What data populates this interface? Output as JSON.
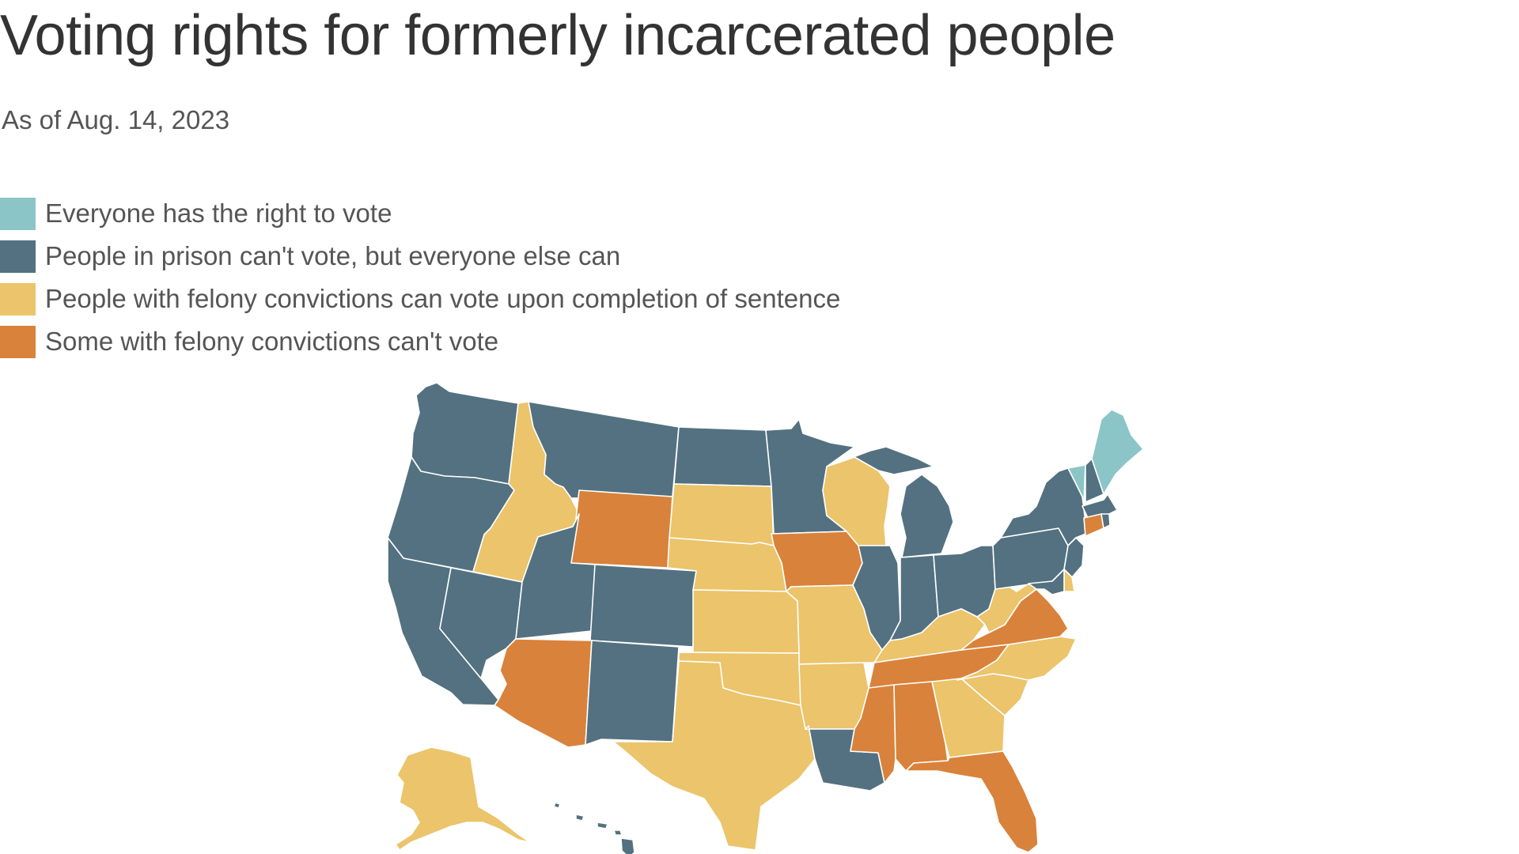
{
  "header": {
    "title": "Voting rights for formerly incarcerated people",
    "subtitle": "As of Aug. 14, 2023"
  },
  "legend": [
    {
      "key": "everyone",
      "label": "Everyone has the right to vote",
      "color": "#8cc5c7"
    },
    {
      "key": "prison",
      "label": "People in prison can't vote, but everyone else can",
      "color": "#537180"
    },
    {
      "key": "sentence",
      "label": "People with felony convictions can vote upon completion of sentence",
      "color": "#ebc46b"
    },
    {
      "key": "some",
      "label": "Some with felony convictions can't vote",
      "color": "#d9823b"
    }
  ],
  "states": {
    "WA": "prison",
    "OR": "prison",
    "CA": "prison",
    "NV": "prison",
    "ID": "sentence",
    "MT": "prison",
    "WY": "some",
    "UT": "prison",
    "CO": "prison",
    "AZ": "some",
    "NM": "prison",
    "ND": "prison",
    "SD": "sentence",
    "NE": "sentence",
    "KS": "sentence",
    "OK": "sentence",
    "TX": "sentence",
    "MN": "prison",
    "IA": "some",
    "MO": "sentence",
    "AR": "sentence",
    "LA": "prison",
    "WI": "sentence",
    "IL": "prison",
    "MI": "prison",
    "IN": "prison",
    "OH": "prison",
    "KY": "sentence",
    "TN": "some",
    "MS": "some",
    "AL": "some",
    "GA": "sentence",
    "FL": "some",
    "SC": "sentence",
    "NC": "sentence",
    "VA": "some",
    "WV": "sentence",
    "PA": "prison",
    "NY": "prison",
    "VT": "everyone",
    "NH": "prison",
    "ME": "everyone",
    "MA": "prison",
    "CT": "some",
    "RI": "prison",
    "NJ": "prison",
    "DE": "sentence",
    "MD": "prison",
    "AK": "sentence",
    "HI": "prison"
  }
}
